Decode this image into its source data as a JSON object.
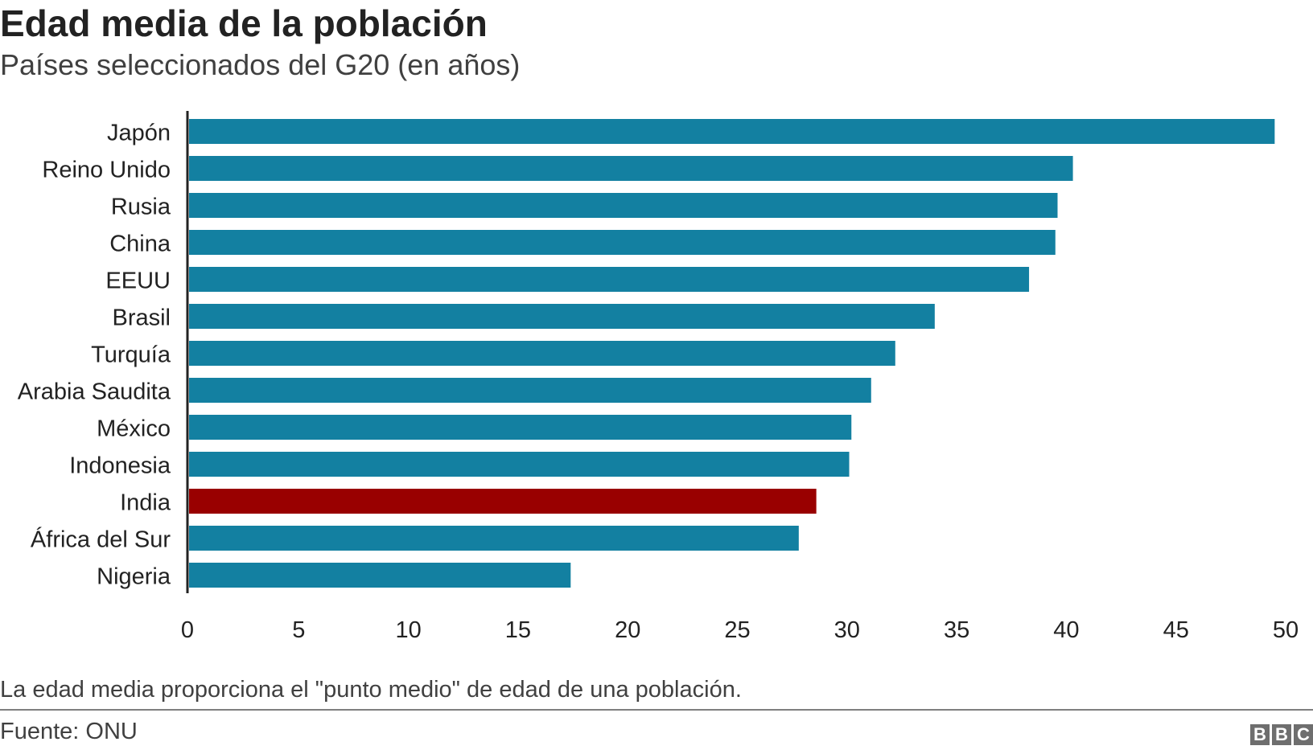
{
  "chart_data": {
    "type": "bar",
    "orientation": "horizontal",
    "title": "Edad media de la población",
    "subtitle": "Países seleccionados del G20 (en años)",
    "categories": [
      "Japón",
      "Reino Unido",
      "Rusia",
      "China",
      "EEUU",
      "Brasil",
      "Turquía",
      "Arabia Saudita",
      "México",
      "Indonesia",
      "India",
      "África del Sur",
      "Nigeria"
    ],
    "values": [
      49.5,
      40.3,
      39.6,
      39.5,
      38.3,
      34.0,
      32.2,
      31.1,
      30.2,
      30.1,
      28.6,
      27.8,
      17.4
    ],
    "highlight": "India",
    "colors": {
      "default": "#1380a1",
      "highlight": "#990000"
    },
    "xlim": [
      0,
      50
    ],
    "xticks": [
      0,
      5,
      10,
      15,
      20,
      25,
      30,
      35,
      40,
      45,
      50
    ],
    "xlabel": "",
    "ylabel": "",
    "grid": false
  },
  "footer": {
    "note": "La edad media proporciona el \"punto medio\" de edad de una población.",
    "source": "Fuente: ONU",
    "logo_letters": [
      "B",
      "B",
      "C"
    ]
  }
}
